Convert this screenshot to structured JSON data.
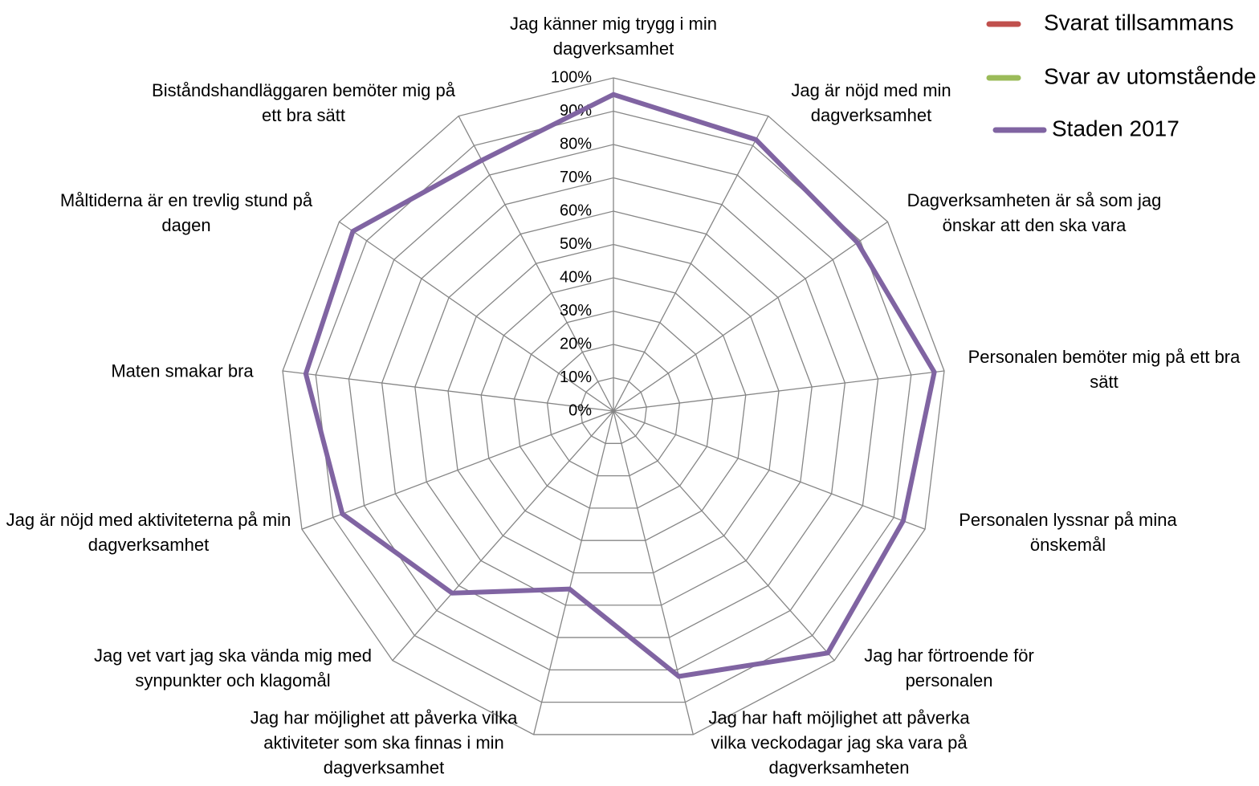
{
  "chart_data": {
    "type": "radar",
    "categories": [
      "Jag känner mig trygg i min dagverksamhet",
      "Jag är nöjd med min dagverksamhet",
      "Dagverksamheten är så som jag önskar att den ska vara",
      "Personalen bemöter mig på ett bra sätt",
      "Personalen lyssnar på mina önskemål",
      "Jag har förtroende för personalen",
      "Jag har haft möjlighet att påverka vilka veckodagar jag ska vara på dagverksamheten",
      "Jag har möjlighet att påverka vilka aktiviteter som ska finnas i min dagverksamhet",
      "Jag vet vart jag ska vända mig med synpunkter och klagomål",
      "Jag är nöjd med aktiviteterna på min dagverksamhet",
      "Maten smakar bra",
      "Måltiderna är en trevlig stund på dagen",
      "Biståndshandläggaren bemöter mig på ett bra sätt"
    ],
    "series": [
      {
        "name": "Svarat tillsammans",
        "color": "#c0504d",
        "values": [
          null,
          null,
          null,
          null,
          null,
          null,
          null,
          null,
          null,
          null,
          null,
          null,
          null
        ]
      },
      {
        "name": "Svar av utomstående",
        "color": "#9bbb59",
        "values": [
          null,
          null,
          null,
          null,
          null,
          null,
          null,
          null,
          null,
          null,
          null,
          null,
          null
        ]
      },
      {
        "name": "Staden 2017",
        "color": "#8064a2",
        "values": [
          95,
          92,
          89,
          97,
          93,
          97,
          82,
          55,
          73,
          87,
          93,
          95,
          85
        ]
      }
    ],
    "ylim": [
      0,
      100
    ],
    "yticks": [
      {
        "value": 0,
        "label": "0%"
      },
      {
        "value": 10,
        "label": "10%"
      },
      {
        "value": 20,
        "label": "20%"
      },
      {
        "value": 30,
        "label": "30%"
      },
      {
        "value": 40,
        "label": "40%"
      },
      {
        "value": 50,
        "label": "50%"
      },
      {
        "value": 60,
        "label": "60%"
      },
      {
        "value": 70,
        "label": "70%"
      },
      {
        "value": 80,
        "label": "80%"
      },
      {
        "value": 90,
        "label": "90%"
      },
      {
        "value": 100,
        "label": "100%"
      }
    ],
    "grid": true
  }
}
